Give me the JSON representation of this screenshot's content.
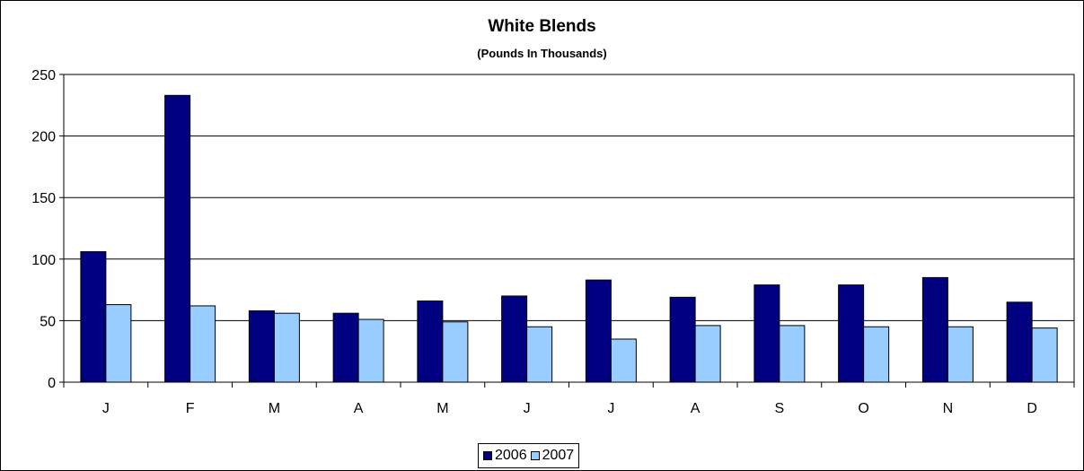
{
  "chart_data": {
    "type": "bar",
    "title": "White Blends",
    "subtitle": "(Pounds In Thousands)",
    "xlabel": "",
    "ylabel": "",
    "categories": [
      "J",
      "F",
      "M",
      "A",
      "M",
      "J",
      "J",
      "A",
      "S",
      "O",
      "N",
      "D"
    ],
    "series": [
      {
        "name": "2006",
        "color": "#000080",
        "values": [
          106,
          233,
          58,
          56,
          66,
          70,
          83,
          69,
          79,
          79,
          85,
          65
        ]
      },
      {
        "name": "2007",
        "color": "#99ccff",
        "values": [
          63,
          62,
          56,
          51,
          49,
          45,
          35,
          46,
          46,
          45,
          45,
          44
        ]
      }
    ],
    "ylim": [
      0,
      250
    ],
    "yticks": [
      0,
      50,
      100,
      150,
      200,
      250
    ],
    "grid": true,
    "legend_position": "bottom"
  }
}
